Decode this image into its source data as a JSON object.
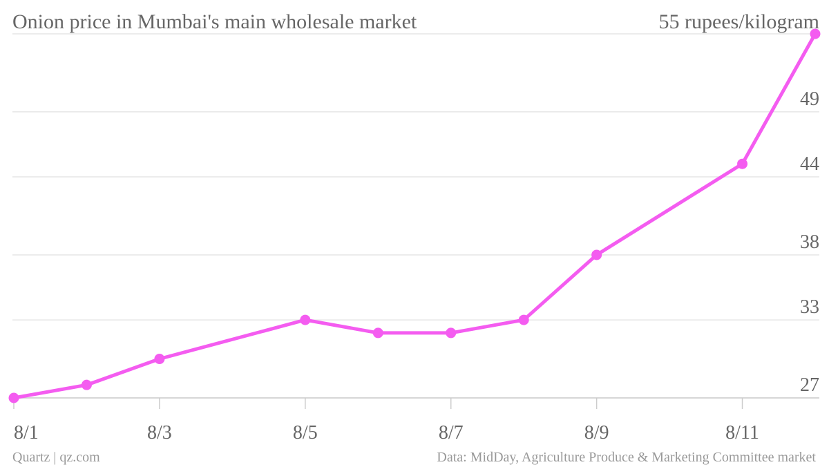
{
  "chart_data": {
    "type": "line",
    "title": "Onion price in Mumbai's main wholesale market",
    "ylabel": "55 rupees/kilogram",
    "x": [
      "8/1",
      "8/2",
      "8/3",
      "8/5",
      "8/6",
      "8/7",
      "8/8",
      "8/9",
      "8/11",
      "8/12"
    ],
    "x_dates": [
      1,
      2,
      3,
      5,
      6,
      7,
      8,
      9,
      11,
      12
    ],
    "series": [
      {
        "values": [
          27,
          28,
          30,
          33,
          32,
          32,
          33,
          38,
          45,
          55
        ]
      }
    ],
    "xticks": [
      "8/1",
      "8/3",
      "8/5",
      "8/7",
      "8/9",
      "8/11"
    ],
    "xtick_dates": [
      1,
      3,
      5,
      7,
      9,
      11
    ],
    "yticks": [
      "27",
      "33",
      "38",
      "44",
      "49"
    ],
    "ytick_values": [
      27,
      33,
      38,
      44,
      49,
      55
    ],
    "ylim": [
      27,
      55
    ],
    "xlim": [
      1,
      12
    ],
    "grid": true,
    "line_color": "#f45cf0"
  },
  "footer": {
    "credit": "Quartz | qz.com",
    "source": "Data: MidDay, Agriculture Produce & Marketing Committee market"
  }
}
